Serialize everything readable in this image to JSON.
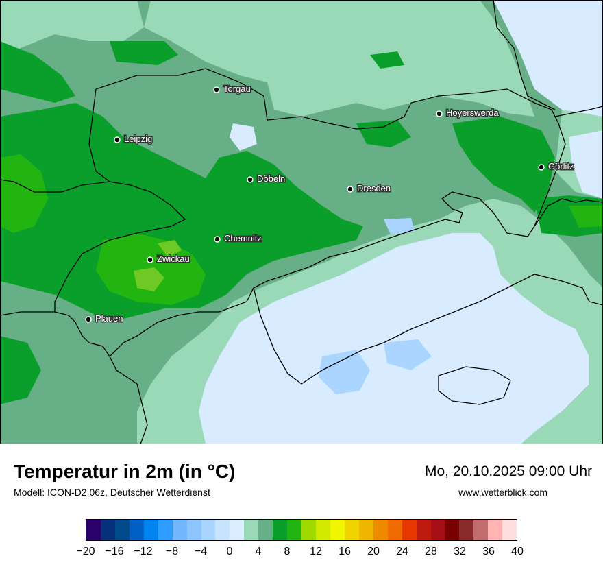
{
  "map": {
    "cities": [
      {
        "name": "Torgau"
      },
      {
        "name": "Hoyerswerda"
      },
      {
        "name": "Leipzig"
      },
      {
        "name": "Görlitz"
      },
      {
        "name": "Döbeln"
      },
      {
        "name": "Dresden"
      },
      {
        "name": "Chemnitz"
      },
      {
        "name": "Zwickau"
      },
      {
        "name": "Plauen"
      }
    ],
    "colors": {
      "dark_green": "#67af86",
      "green": "#0a9e2a",
      "light_green": "#22b512",
      "lime": "#6fc924",
      "mint": "#9ad9b8",
      "pale_blue": "#d9ebff",
      "light_blue": "#a9d5ff"
    }
  },
  "footer": {
    "title": "Temperatur in 2m (in °C)",
    "model": "Modell: ICON-D2 06z, Deutscher Wetterdienst",
    "datetime": "Mo, 20.10.2025 09:00 Uhr",
    "website": "www.wetterblick.com"
  },
  "legend": {
    "colors": [
      "#2c006b",
      "#07307a",
      "#004a8a",
      "#0060c4",
      "#0085f0",
      "#2f9cff",
      "#72b7ff",
      "#8ec5ff",
      "#a9d5ff",
      "#c8e4ff",
      "#dbeeff",
      "#9ad9b8",
      "#67af86",
      "#0a9e2a",
      "#22b512",
      "#a0d900",
      "#d1ea00",
      "#f0f500",
      "#f0d400",
      "#f0b700",
      "#f08b00",
      "#f06a00",
      "#e63800",
      "#c01b0f",
      "#a81018",
      "#7a0000",
      "#8a2a2a",
      "#c26d6d",
      "#ffb3b3",
      "#ffdede"
    ],
    "ticks": [
      "−20",
      "−16",
      "−12",
      "−8",
      "−4",
      "0",
      "4",
      "8",
      "12",
      "16",
      "20",
      "24",
      "28",
      "32",
      "36",
      "40"
    ]
  }
}
